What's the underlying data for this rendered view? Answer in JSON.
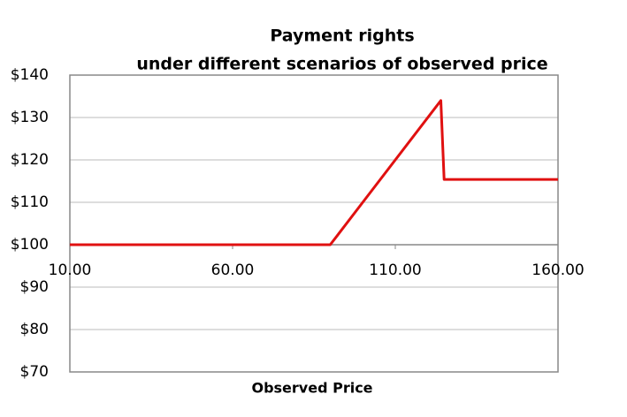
{
  "chart_data": {
    "type": "line",
    "title": "Payment rights",
    "subtitle": "under different scenarios of observed price",
    "x_label": "Observed Price",
    "x": [
      10,
      90,
      92,
      100,
      124,
      125,
      160
    ],
    "series": [
      {
        "name": "Payment rights",
        "color": "#e01010",
        "values": [
          100,
          100,
          102,
          110,
          134,
          115.4,
          115.4
        ]
      }
    ],
    "xlim": [
      10,
      160
    ],
    "xticks": [
      {
        "value": 10,
        "label": "10.00"
      },
      {
        "value": 60,
        "label": "60.00"
      },
      {
        "value": 110,
        "label": "110.00"
      },
      {
        "value": 160,
        "label": "160.00"
      }
    ],
    "ylim": [
      70,
      140
    ],
    "yticks": [
      {
        "value": 70,
        "label": "$70"
      },
      {
        "value": 80,
        "label": "$80"
      },
      {
        "value": 90,
        "label": "$90"
      },
      {
        "value": 100,
        "label": "$100"
      },
      {
        "value": 110,
        "label": "$110"
      },
      {
        "value": 120,
        "label": "$120"
      },
      {
        "value": 130,
        "label": "$130"
      },
      {
        "value": 140,
        "label": "$140"
      }
    ],
    "x_axis_crosses": 100,
    "grid": true
  }
}
